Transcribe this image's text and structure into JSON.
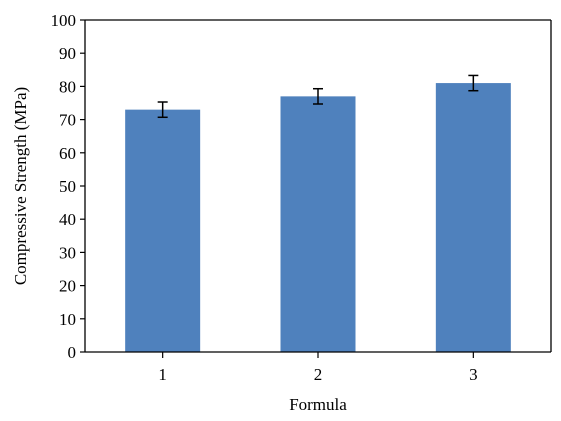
{
  "chart_data": {
    "type": "bar",
    "title": "",
    "xlabel": "Formula",
    "ylabel": "Compressive Strength (MPa)",
    "categories": [
      "1",
      "2",
      "3"
    ],
    "values": [
      73,
      77,
      81
    ],
    "errors": [
      2.3,
      2.3,
      2.3
    ],
    "ylim": [
      0,
      100
    ],
    "yticks": [
      "0",
      "10",
      "20",
      "30",
      "40",
      "50",
      "60",
      "70",
      "80",
      "90",
      "100"
    ],
    "grid": false,
    "legend": "none",
    "bar_color": "#4f81bd",
    "error_bar_color": "#000000"
  }
}
